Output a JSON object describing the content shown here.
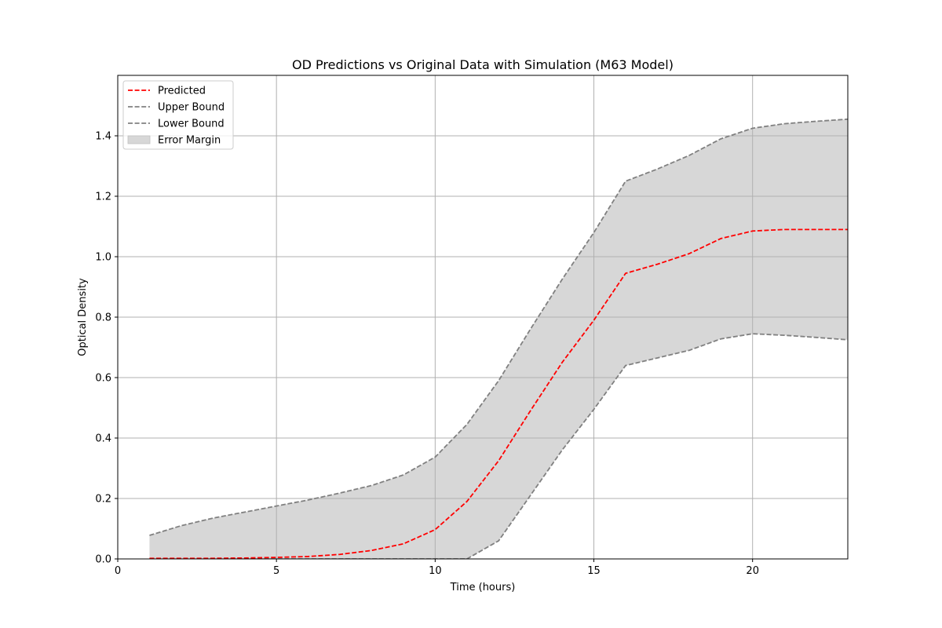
{
  "chart_data": {
    "type": "line",
    "title": "OD Predictions vs Original Data with Simulation (M63 Model)",
    "xlabel": "Time (hours)",
    "ylabel": "Optical Density",
    "xlim": [
      0,
      23
    ],
    "ylim": [
      0,
      1.6
    ],
    "xticks": [
      0,
      5,
      10,
      15,
      20
    ],
    "yticks": [
      0.0,
      0.2,
      0.4,
      0.6,
      0.8,
      1.0,
      1.2,
      1.4
    ],
    "xtick_labels": [
      "0",
      "5",
      "10",
      "15",
      "20"
    ],
    "ytick_labels": [
      "0.0",
      "0.2",
      "0.4",
      "0.6",
      "0.8",
      "1.0",
      "1.2",
      "1.4"
    ],
    "grid": true,
    "legend_position": "upper-left",
    "x": [
      1,
      2,
      3,
      4,
      5,
      6,
      7,
      8,
      9,
      10,
      11,
      12,
      13,
      14,
      15,
      16,
      17,
      18,
      19,
      20,
      21,
      22,
      23
    ],
    "series": [
      {
        "name": "Predicted",
        "style": "dashed",
        "color": "#ff0000",
        "values": [
          0.002,
          0.002,
          0.002,
          0.003,
          0.005,
          0.008,
          0.015,
          0.028,
          0.05,
          0.097,
          0.19,
          0.325,
          0.49,
          0.65,
          0.79,
          0.945,
          0.975,
          1.01,
          1.06,
          1.085,
          1.09,
          1.09,
          1.09
        ]
      },
      {
        "name": "Upper Bound",
        "style": "dashed",
        "color": "#808080",
        "values": [
          0.078,
          0.11,
          0.135,
          0.155,
          0.175,
          0.195,
          0.218,
          0.243,
          0.278,
          0.337,
          0.445,
          0.59,
          0.76,
          0.925,
          1.08,
          1.25,
          1.29,
          1.335,
          1.39,
          1.425,
          1.44,
          1.448,
          1.455
        ]
      },
      {
        "name": "Lower Bound",
        "style": "dashed",
        "color": "#808080",
        "values": [
          0.0,
          0.0,
          0.0,
          0.0,
          0.0,
          0.0,
          0.0,
          0.0,
          0.0,
          0.0,
          0.0,
          0.06,
          0.21,
          0.36,
          0.495,
          0.64,
          0.665,
          0.69,
          0.728,
          0.745,
          0.74,
          0.733,
          0.725
        ]
      }
    ],
    "fill": {
      "name": "Error Margin",
      "color": "#d7d7d7",
      "between": [
        "Lower Bound",
        "Upper Bound"
      ]
    }
  }
}
